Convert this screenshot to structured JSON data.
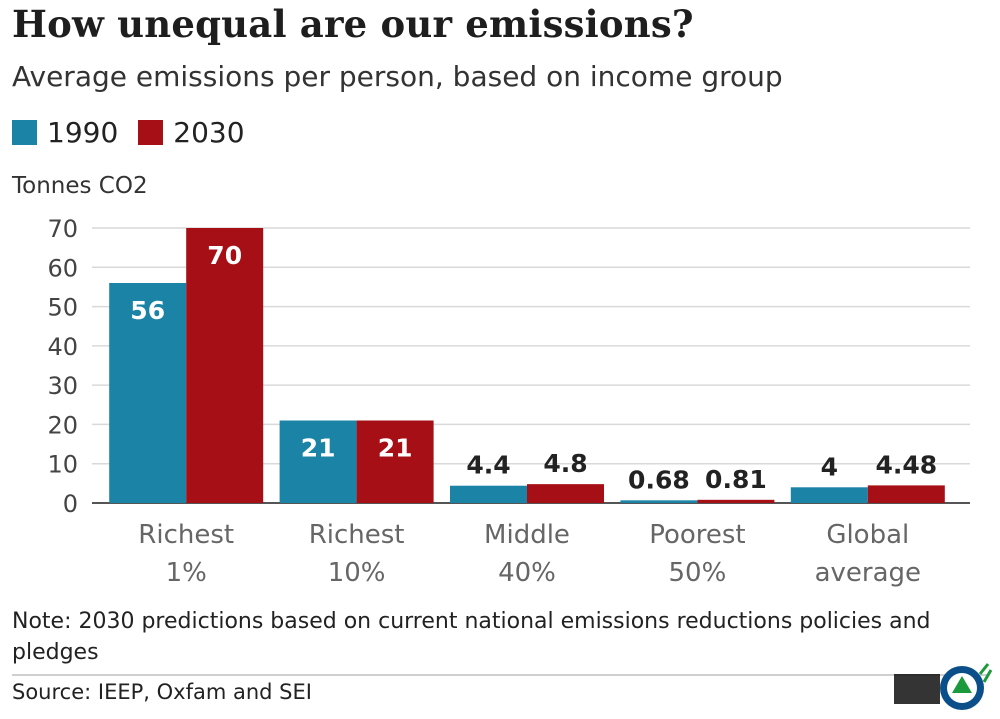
{
  "header": {
    "title": "How unequal are our emissions?",
    "subtitle": "Average emissions per person, based on income group"
  },
  "legend": {
    "items": [
      {
        "label": "1990",
        "color": "#1b84a6"
      },
      {
        "label": "2030",
        "color": "#a50f15"
      }
    ]
  },
  "chart_data": {
    "type": "bar",
    "ylabel": "Tonnes CO2",
    "xlabel": "",
    "ylim": [
      0,
      70
    ],
    "yticks": [
      0,
      10,
      20,
      30,
      40,
      50,
      60,
      70
    ],
    "grid": true,
    "categories": [
      [
        "Richest",
        "1%"
      ],
      [
        "Richest",
        "10%"
      ],
      [
        "Middle",
        "40%"
      ],
      [
        "Poorest",
        "50%"
      ],
      [
        "Global",
        "average"
      ]
    ],
    "series": [
      {
        "name": "1990",
        "color": "#1b84a6",
        "values": [
          56,
          21,
          4.4,
          0.68,
          4
        ],
        "labels": [
          "56",
          "21",
          "4.4",
          "0.68",
          "4"
        ]
      },
      {
        "name": "2030",
        "color": "#a50f15",
        "values": [
          70,
          21,
          4.8,
          0.81,
          4.48
        ],
        "labels": [
          "70",
          "21",
          "4.8",
          "0.81",
          "4.48"
        ]
      }
    ]
  },
  "footer": {
    "note": "Note: 2030 predictions based on current national emissions reductions policies and pledges",
    "source": "Source: IEEP, Oxfam and SEI"
  }
}
